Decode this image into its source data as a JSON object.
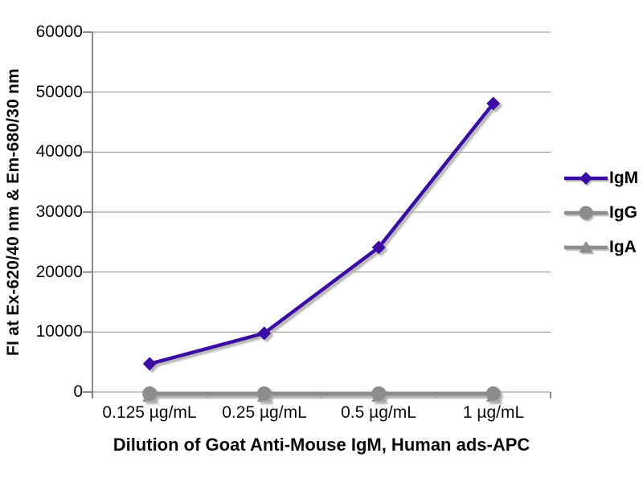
{
  "chart_data": {
    "type": "line",
    "title": "",
    "categories": [
      "0.125 µg/mL",
      "0.25 µg/mL",
      "0.5 µg/mL",
      "1 µg/mL"
    ],
    "yticks": [
      0,
      10000,
      20000,
      30000,
      40000,
      50000,
      60000
    ],
    "ylim": [
      0,
      60000
    ],
    "xlabel": "Dilution of Goat Anti-Mouse IgM, Human ads-APC",
    "ylabel": "FI at Ex-620/40 nm & Em-680/30 nm",
    "grid": true,
    "legend_position": "right",
    "series": [
      {
        "name": "IgM",
        "marker": "diamond",
        "color": "#3A0CA3",
        "values": [
          4700,
          9800,
          24100,
          48100
        ],
        "baseline_offset": 0
      },
      {
        "name": "IgG",
        "marker": "circle",
        "color": "#8C8C8C",
        "values": [
          0,
          0,
          0,
          0
        ],
        "baseline_offset": 2
      },
      {
        "name": "IgA",
        "marker": "triangle",
        "color": "#8C8C8C",
        "values": [
          0,
          0,
          0,
          0
        ],
        "baseline_offset": 5
      }
    ]
  },
  "colors": {
    "background": "#FFFFFF",
    "gridline": "#8C8C8C",
    "axis": "#7F7F7F",
    "text": "#0B0B0B",
    "shadow": "#ADADAD",
    "igm_purple": "#3A0CA3",
    "series_gray": "#8C8C8C"
  }
}
